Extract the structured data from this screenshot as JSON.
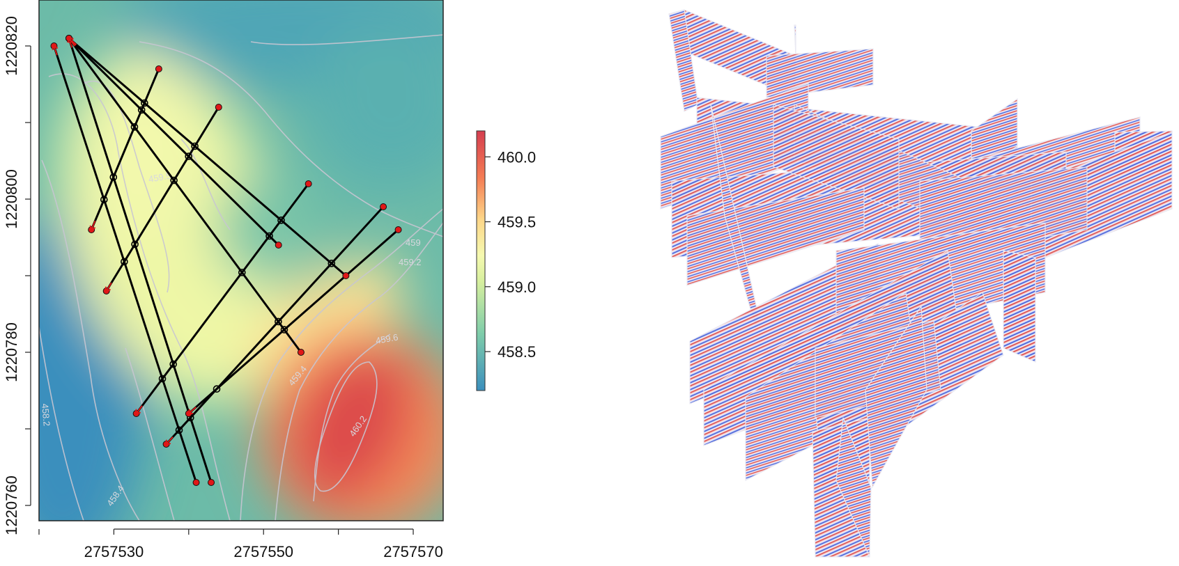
{
  "chart_data": [
    {
      "type": "heatmap",
      "subtype": "filled-contour map with GPR survey lines",
      "title": "",
      "xlabel": "",
      "ylabel": "",
      "xlim": [
        2757520,
        2757574
      ],
      "ylim": [
        1220758,
        1220826
      ],
      "x_ticks": [
        2757530,
        2757550,
        2757570
      ],
      "y_ticks": [
        1220760,
        1220780,
        1220800,
        1220820
      ],
      "tick_labels_x": [
        "2757530",
        "2757550",
        "2757570"
      ],
      "tick_labels_y": [
        "1220760",
        "1220780",
        "1220800",
        "1220820"
      ],
      "grid": false,
      "colorbar": {
        "min": 458.2,
        "max": 460.2,
        "ticks": [
          458.5,
          459.0,
          459.5,
          460.0
        ],
        "tick_labels": [
          "458.5",
          "459.0",
          "459.5",
          "460.0"
        ],
        "colors": [
          "#3b8fbd",
          "#7fcdaa",
          "#e6f59c",
          "#fdbd6b",
          "#f26a4a",
          "#d53e4f"
        ]
      },
      "contour_labels": [
        "459.5",
        "459",
        "459.2",
        "459.6",
        "459.4",
        "458.2",
        "458.4",
        "460.2"
      ],
      "lines": [
        {
          "start": [
            2757524,
            1220821
          ],
          "end": [
            2757543,
            1220763
          ]
        },
        {
          "start": [
            2757522,
            1220820
          ],
          "end": [
            2757541,
            1220763
          ]
        },
        {
          "start": [
            2757524,
            1220821
          ],
          "end": [
            2757552,
            1220794
          ]
        },
        {
          "start": [
            2757524,
            1220821
          ],
          "end": [
            2757561,
            1220790
          ]
        },
        {
          "start": [
            2757524,
            1220821
          ],
          "end": [
            2757555,
            1220780
          ]
        },
        {
          "start": [
            2757527,
            1220796
          ],
          "end": [
            2757536,
            1220817
          ]
        },
        {
          "start": [
            2757529,
            1220788
          ],
          "end": [
            2757544,
            1220812
          ]
        },
        {
          "start": [
            2757533,
            1220772
          ],
          "end": [
            2757556,
            1220802
          ]
        },
        {
          "start": [
            2757537,
            1220768
          ],
          "end": [
            2757566,
            1220799
          ]
        },
        {
          "start": [
            2757540,
            1220772
          ],
          "end": [
            2757568,
            1220796
          ]
        }
      ],
      "markers": {
        "line_end": "red point",
        "line_start": "red arrow",
        "crossing": "open circle"
      }
    },
    {
      "type": "other",
      "subtype": "3D fence diagram of GPR radargrams",
      "title": "",
      "colors": [
        "#1f3fd0",
        "#e8e8f0",
        "#d22a2a"
      ]
    }
  ]
}
